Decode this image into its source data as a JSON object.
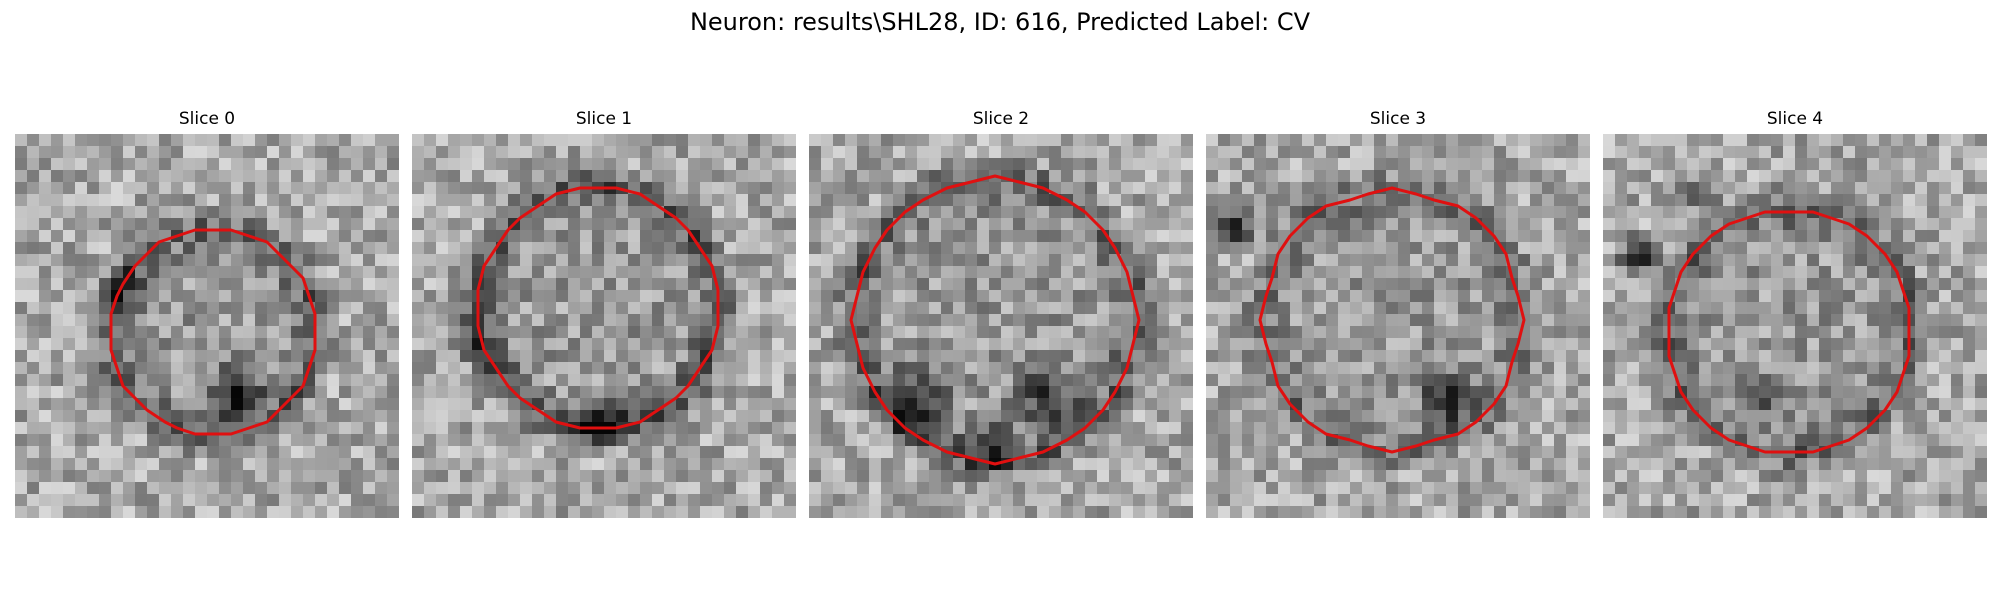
{
  "figure": {
    "title": "Neuron: results\\SHL28, ID: 616, Predicted Label: CV"
  },
  "palette": {
    "background": "#ffffff",
    "contour": "#e01010"
  },
  "slices": [
    {
      "title": "Slice 0"
    },
    {
      "title": "Slice 1"
    },
    {
      "title": "Slice 2"
    },
    {
      "title": "Slice 3"
    },
    {
      "title": "Slice 4"
    }
  ]
}
